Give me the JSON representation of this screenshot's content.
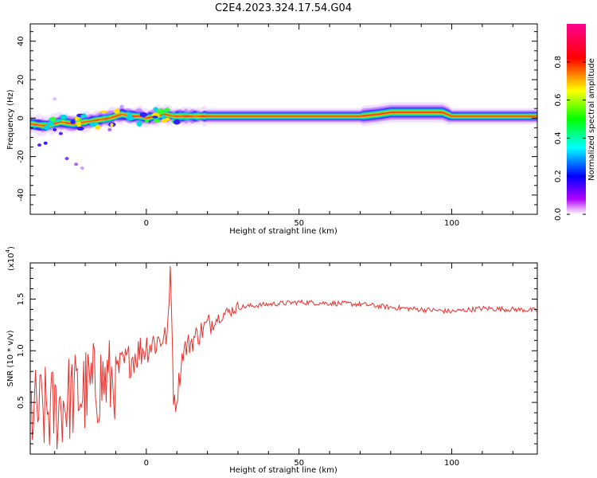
{
  "title": "C2E4.2023.324.17.54.G04",
  "chart_data": [
    {
      "type": "heatmap",
      "xlabel": "Height of straight line (km)",
      "ylabel": "Frequency (Hz)",
      "xlim": [
        -38,
        128
      ],
      "ylim": [
        -50,
        49
      ],
      "xticks": [
        0,
        50,
        100
      ],
      "yticks": [
        -40,
        -20,
        0,
        20,
        40
      ],
      "colorbar": {
        "label": "Normalized spectral amplitude",
        "range": [
          0,
          1
        ],
        "ticks": [
          "0.0",
          "0.2",
          "0.4",
          "0.6",
          "0.8"
        ],
        "colors": [
          "#ffffff",
          "#a000ff",
          "#0000ff",
          "#00ffff",
          "#00ff00",
          "#ffff00",
          "#ff0000",
          "#ff0090"
        ]
      },
      "ridge": {
        "x": [
          -38,
          -33,
          -28,
          -24,
          -20,
          -16,
          -12,
          -8,
          -5,
          -2,
          0,
          3,
          6,
          9,
          12,
          16,
          20,
          30,
          40,
          50,
          60,
          70,
          76,
          80,
          90,
          97,
          100,
          110,
          120,
          128
        ],
        "y": [
          -3,
          -4,
          -2,
          -3,
          -2,
          -1,
          0,
          2,
          1,
          1,
          0,
          1,
          2,
          1,
          1,
          1,
          1,
          1,
          1,
          1,
          1,
          1,
          2,
          3,
          3,
          3,
          1,
          1,
          1,
          1
        ]
      }
    },
    {
      "type": "line",
      "xlabel": "Height of straight line (km)",
      "ylabel": "SNR (10 * v/v)",
      "y_multiplier": "(x10",
      "y_multiplier_exponent": "4",
      "y_multiplier_close": ")",
      "xlim": [
        -38,
        128
      ],
      "ylim": [
        0.0,
        1.85
      ],
      "xticks": [
        0,
        50,
        100
      ],
      "yticks": [
        "0.5",
        "1.0",
        "1.5"
      ],
      "series": [
        {
          "color": "#e8312d",
          "trend_x": [
            -38,
            -30,
            -25,
            -20,
            -15,
            -12,
            -8,
            -4,
            0,
            4,
            7,
            8,
            9,
            10,
            12,
            15,
            20,
            25,
            30,
            40,
            50,
            60,
            70,
            80,
            90,
            100,
            110,
            120,
            128
          ],
          "trend_y": [
            0.4,
            0.42,
            0.55,
            0.6,
            0.7,
            0.7,
            0.85,
            0.95,
            1.05,
            1.1,
            1.15,
            1.8,
            0.45,
            0.55,
            1.0,
            1.1,
            1.25,
            1.35,
            1.42,
            1.45,
            1.47,
            1.46,
            1.45,
            1.42,
            1.4,
            1.38,
            1.41,
            1.4,
            1.39
          ]
        }
      ]
    }
  ]
}
